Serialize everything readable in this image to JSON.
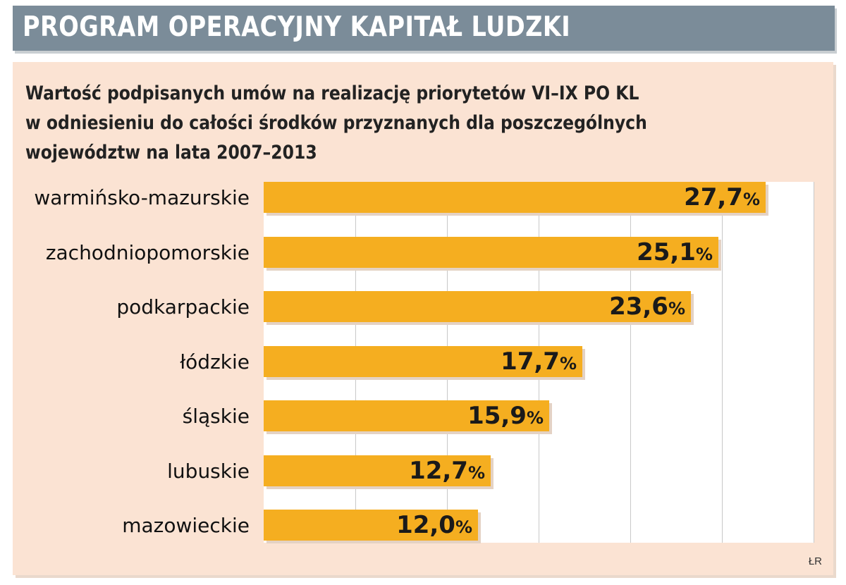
{
  "header": {
    "title": "PROGRAM OPERACYJNY KAPITAŁ LUDZKI"
  },
  "colors": {
    "header_bg": "#7b8c99",
    "panel_bg": "#fbe3d3",
    "bar": "#f5ae20"
  },
  "chart_data": {
    "type": "bar",
    "orientation": "horizontal",
    "title_lines": [
      "Wartość podpisanych umów na realizację priorytetów VI–IX PO KL",
      "w odniesieniu do całości środków przyznanych dla poszczególnych",
      "województw na lata 2007–2013"
    ],
    "categories": [
      "warmińsko-mazurskie",
      "zachodniopomorskie",
      "podkarpackie",
      "łódzkie",
      "śląskie",
      "lubuskie",
      "mazowieckie"
    ],
    "values": [
      27.7,
      25.1,
      23.6,
      17.7,
      15.9,
      12.7,
      12.0
    ],
    "value_labels": [
      "27,7",
      "25,1",
      "23,6",
      "17,7",
      "15,9",
      "12,7",
      "12,0"
    ],
    "unit": "%",
    "xlim": [
      0,
      30
    ],
    "grid": true,
    "source": "ŁR"
  }
}
